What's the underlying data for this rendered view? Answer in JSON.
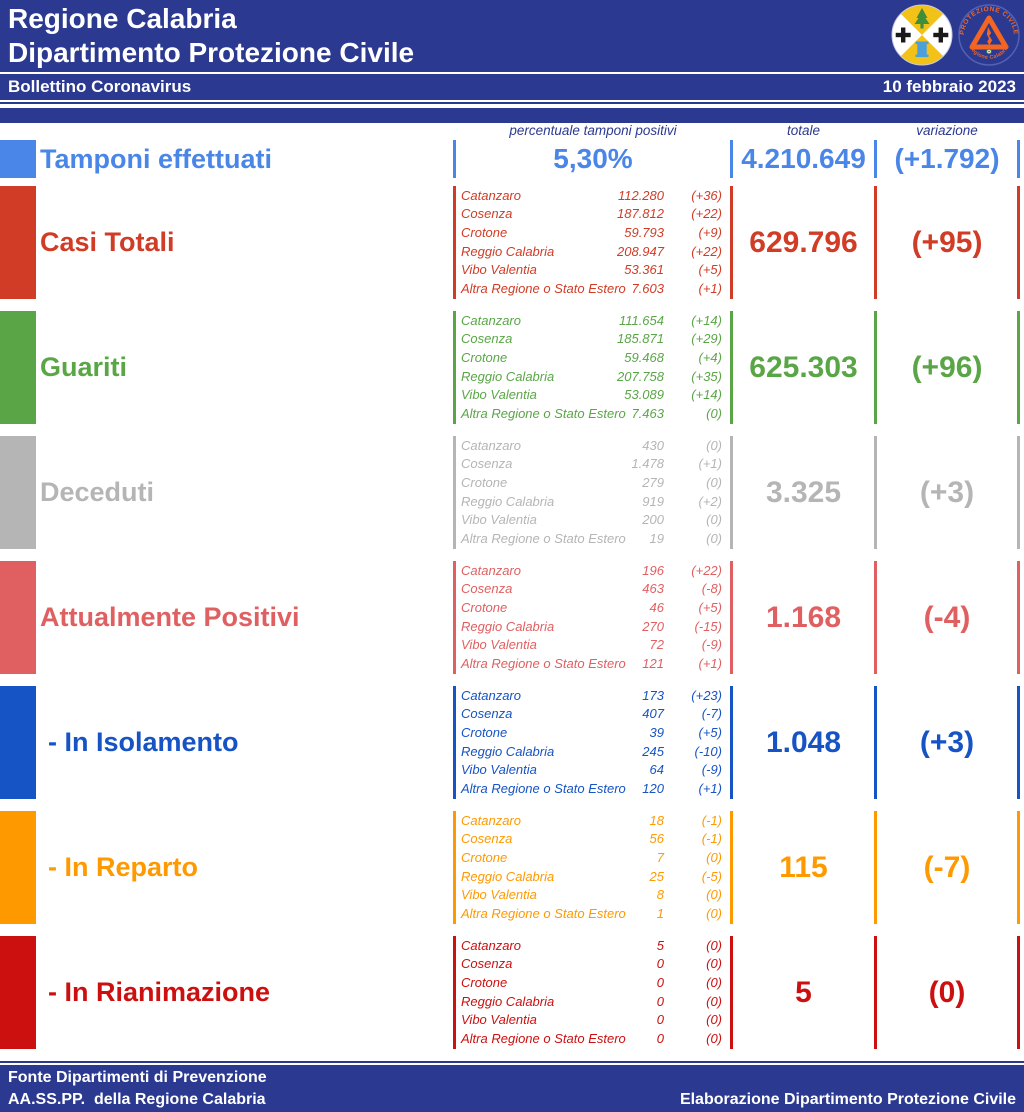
{
  "header": {
    "title_line1": "Regione Calabria",
    "title_line2": "Dipartimento Protezione Civile",
    "bulletin_label": "Bollettino Coronavirus",
    "date": "10 febbraio 2023",
    "logo_calabria_icon": "regione-calabria-coat-of-arms",
    "logo_protezione_top_text": "PROTEZIONE CIVILE",
    "logo_protezione_bottom_text": "Regione Calabria"
  },
  "columns": {
    "percent": "percentuale tamponi positivi",
    "total": "totale",
    "variation": "variazione"
  },
  "colors": {
    "navy": "#2b3990",
    "white": "#ffffff"
  },
  "rows": [
    {
      "id": "tamponi-effettuati",
      "label": "Tamponi effettuati",
      "color": "#4a86e8",
      "percent": "5,30%",
      "total": "4.210.649",
      "variation": "(+1.792)"
    },
    {
      "id": "casi-totali",
      "label": "Casi Totali",
      "color": "#d03c26",
      "total": "629.796",
      "variation": "(+95)",
      "breakdown": [
        {
          "area": "Catanzaro",
          "value": "112.280",
          "change": "(+36)"
        },
        {
          "area": "Cosenza",
          "value": "187.812",
          "change": "(+22)"
        },
        {
          "area": "Crotone",
          "value": "59.793",
          "change": "(+9)"
        },
        {
          "area": "Reggio Calabria",
          "value": "208.947",
          "change": "(+22)"
        },
        {
          "area": "Vibo Valentia",
          "value": "53.361",
          "change": "(+5)"
        },
        {
          "area": "Altra Regione o Stato Estero",
          "value": "7.603",
          "change": "(+1)"
        }
      ]
    },
    {
      "id": "guariti",
      "label": "Guariti",
      "color": "#5aa647",
      "total": "625.303",
      "variation": "(+96)",
      "breakdown": [
        {
          "area": "Catanzaro",
          "value": "111.654",
          "change": "(+14)"
        },
        {
          "area": "Cosenza",
          "value": "185.871",
          "change": "(+29)"
        },
        {
          "area": "Crotone",
          "value": "59.468",
          "change": "(+4)"
        },
        {
          "area": "Reggio Calabria",
          "value": "207.758",
          "change": "(+35)"
        },
        {
          "area": "Vibo Valentia",
          "value": "53.089",
          "change": "(+14)"
        },
        {
          "area": "Altra Regione o Stato Estero",
          "value": "7.463",
          "change": "(0)"
        }
      ]
    },
    {
      "id": "deceduti",
      "label": "Deceduti",
      "color": "#b5b5b5",
      "total": "3.325",
      "variation": "(+3)",
      "breakdown": [
        {
          "area": "Catanzaro",
          "value": "430",
          "change": "(0)"
        },
        {
          "area": "Cosenza",
          "value": "1.478",
          "change": "(+1)"
        },
        {
          "area": "Crotone",
          "value": "279",
          "change": "(0)"
        },
        {
          "area": "Reggio Calabria",
          "value": "919",
          "change": "(+2)"
        },
        {
          "area": "Vibo Valentia",
          "value": "200",
          "change": "(0)"
        },
        {
          "area": "Altra Regione o Stato Estero",
          "value": "19",
          "change": "(0)"
        }
      ]
    },
    {
      "id": "attualmente-positivi",
      "label": "Attualmente Positivi",
      "color": "#e06062",
      "total": "1.168",
      "variation": "(-4)",
      "breakdown": [
        {
          "area": "Catanzaro",
          "value": "196",
          "change": "(+22)"
        },
        {
          "area": "Cosenza",
          "value": "463",
          "change": "(-8)"
        },
        {
          "area": "Crotone",
          "value": "46",
          "change": "(+5)"
        },
        {
          "area": "Reggio Calabria",
          "value": "270",
          "change": "(-15)"
        },
        {
          "area": "Vibo Valentia",
          "value": "72",
          "change": "(-9)"
        },
        {
          "area": "Altra Regione o Stato Estero",
          "value": "121",
          "change": "(+1)"
        }
      ]
    },
    {
      "id": "in-isolamento",
      "label": "- In Isolamento",
      "indent": true,
      "color": "#1653c4",
      "total": "1.048",
      "variation": "(+3)",
      "breakdown": [
        {
          "area": "Catanzaro",
          "value": "173",
          "change": "(+23)"
        },
        {
          "area": "Cosenza",
          "value": "407",
          "change": "(-7)"
        },
        {
          "area": "Crotone",
          "value": "39",
          "change": "(+5)"
        },
        {
          "area": "Reggio Calabria",
          "value": "245",
          "change": "(-10)"
        },
        {
          "area": "Vibo Valentia",
          "value": "64",
          "change": "(-9)"
        },
        {
          "area": "Altra Regione o Stato Estero",
          "value": "120",
          "change": "(+1)"
        }
      ]
    },
    {
      "id": "in-reparto",
      "label": "- In Reparto",
      "indent": true,
      "color": "#ff9900",
      "total": "115",
      "variation": "(-7)",
      "breakdown": [
        {
          "area": "Catanzaro",
          "value": "18",
          "change": "(-1)"
        },
        {
          "area": "Cosenza",
          "value": "56",
          "change": "(-1)"
        },
        {
          "area": "Crotone",
          "value": "7",
          "change": "(0)"
        },
        {
          "area": "Reggio Calabria",
          "value": "25",
          "change": "(-5)"
        },
        {
          "area": "Vibo Valentia",
          "value": "8",
          "change": "(0)"
        },
        {
          "area": "Altra Regione o Stato Estero",
          "value": "1",
          "change": "(0)"
        }
      ]
    },
    {
      "id": "in-rianimazione",
      "label": "- In Rianimazione",
      "indent": true,
      "color": "#cc1010",
      "total": "5",
      "variation": "(0)",
      "breakdown": [
        {
          "area": "Catanzaro",
          "value": "5",
          "change": "(0)"
        },
        {
          "area": "Cosenza",
          "value": "0",
          "change": "(0)"
        },
        {
          "area": "Crotone",
          "value": "0",
          "change": "(0)"
        },
        {
          "area": "Reggio Calabria",
          "value": "0",
          "change": "(0)"
        },
        {
          "area": "Vibo Valentia",
          "value": "0",
          "change": "(0)"
        },
        {
          "area": "Altra Regione o Stato Estero",
          "value": "0",
          "change": "(0)"
        }
      ]
    }
  ],
  "footer": {
    "line1": "Fonte Dipartimenti di Prevenzione",
    "line2": "AA.SS.PP.  della Regione Calabria",
    "right": "Elaborazione Dipartimento Protezione Civile"
  }
}
